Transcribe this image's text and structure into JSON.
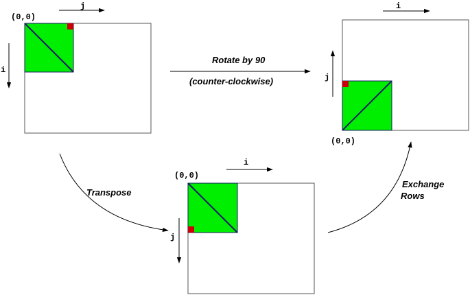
{
  "colors": {
    "box_stroke": "#555555",
    "sub_fill": "#00ee00",
    "diag": "#1a1a66",
    "marker": "#cc0000",
    "arrow": "#000000"
  },
  "matrices": {
    "top_left": {
      "origin": "(0,0)",
      "axis_h": "j",
      "axis_v": "i"
    },
    "top_right": {
      "origin": "(0,0)",
      "axis_h": "i",
      "axis_v": "j"
    },
    "bottom": {
      "origin": "(0,0)",
      "axis_h": "i",
      "axis_v": "j"
    }
  },
  "operations": {
    "rotate_line1": "Rotate by 90",
    "rotate_line2": "(counter-clockwise)",
    "transpose": "Transpose",
    "exchange_line1": "Exchange",
    "exchange_line2": "Rows"
  }
}
